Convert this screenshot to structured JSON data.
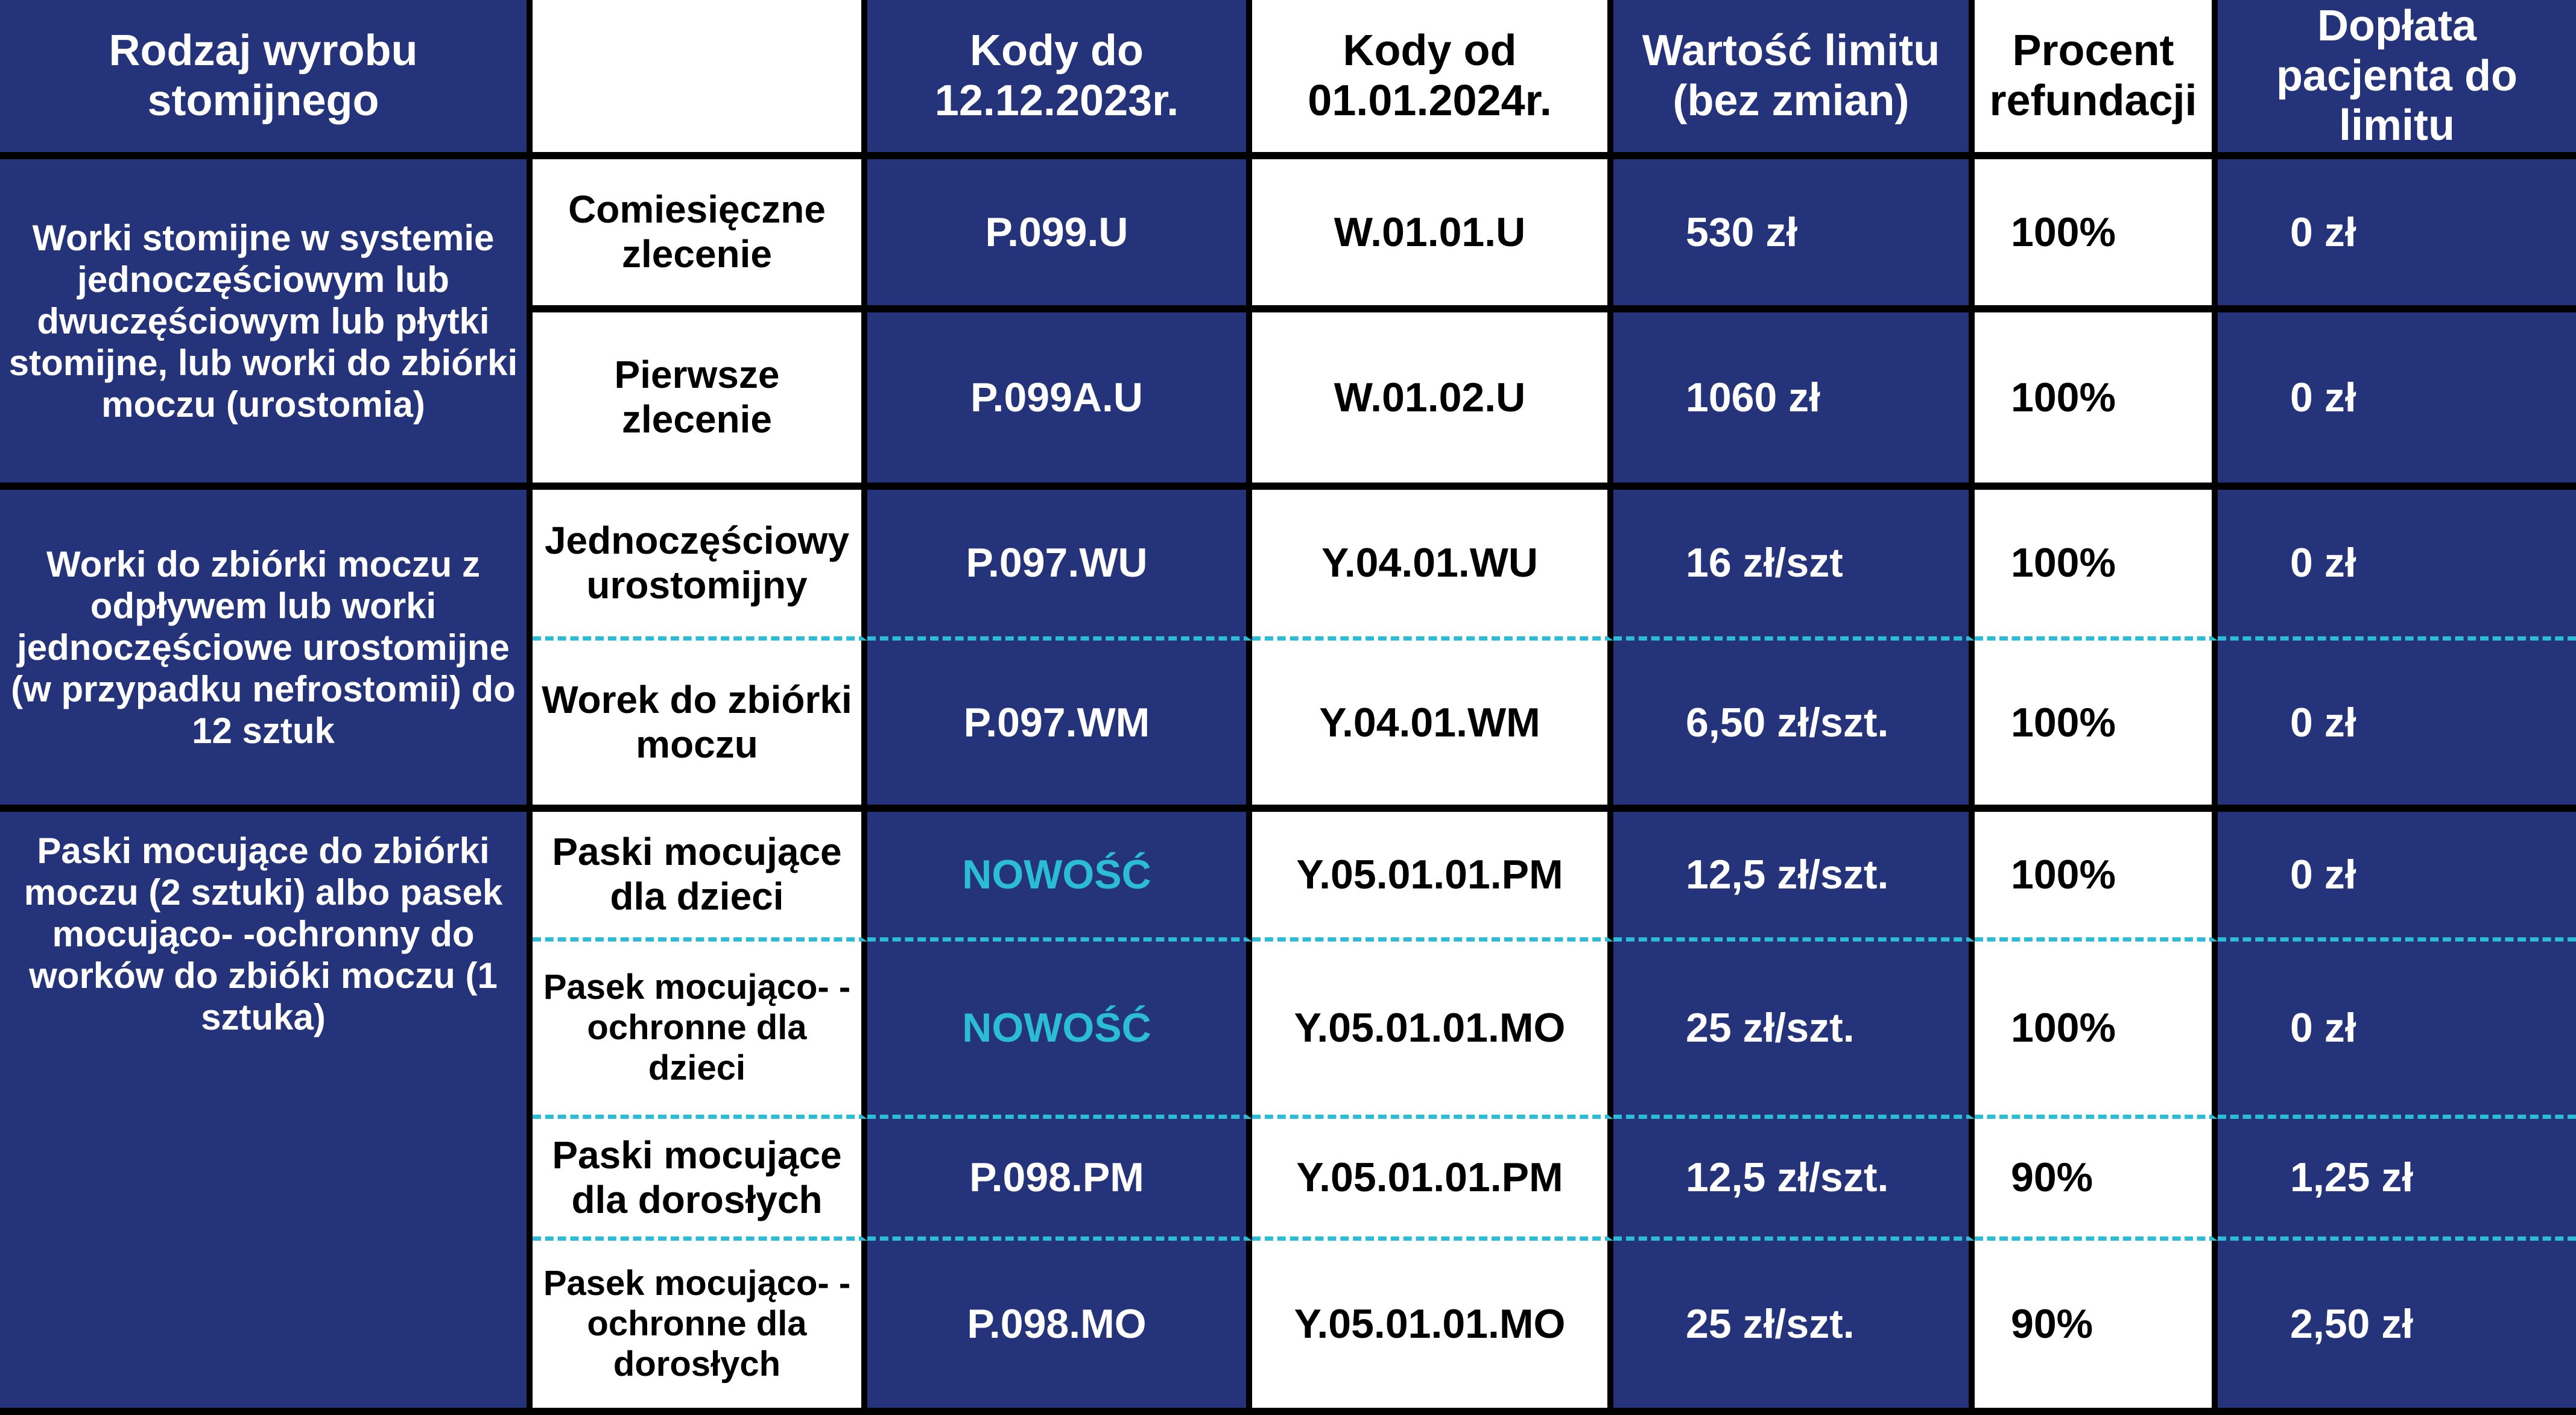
{
  "colors": {
    "blue": "#25347a",
    "white": "#ffffff",
    "new_badge": "#2bbcd8",
    "divider_dashed": "#2bbcd8"
  },
  "header": [
    "Rodzaj wyrobu stomijnego",
    "",
    "Kody do 12.12.2023r.",
    "Kody od 01.01.2024r.",
    "Wartość limitu (bez zmian)",
    "Procent refundacji",
    "Dopłata pacjenta do limitu"
  ],
  "groups": [
    {
      "category": "Worki stomijne w systemie jednoczęściowym lub dwuczęściowym lub płytki stomijne, lub worki do zbiórki moczu (urostomia)",
      "rows": [
        {
          "sub": "Comiesięczne zlecenie",
          "old": "P.099.U",
          "new": "W.01.01.U",
          "limit": "530 zł",
          "pct": "100%",
          "copay": "0 zł"
        },
        {
          "sub": "Pierwsze zlecenie",
          "old": "P.099A.U",
          "new": "W.01.02.U",
          "limit": "1060 zł",
          "pct": "100%",
          "copay": "0 zł"
        }
      ]
    },
    {
      "category": "Worki do zbiórki moczu z odpływem lub worki jednoczęściowe urostomijne (w przypadku nefrostomii) do 12 sztuk",
      "rows": [
        {
          "sub": "Jednoczęściowy urostomijny",
          "old": "P.097.WU",
          "new": "Y.04.01.WU",
          "limit": "16 zł/szt",
          "pct": "100%",
          "copay": "0 zł"
        },
        {
          "sub": "Worek do zbiórki moczu",
          "old": "P.097.WM",
          "new": "Y.04.01.WM",
          "limit": "6,50 zł/szt.",
          "pct": "100%",
          "copay": "0 zł"
        }
      ]
    },
    {
      "category": "Paski mocujące do zbiórki moczu (2 sztuki) albo pasek mocująco- -ochronny do worków do zbióki moczu (1 sztuka)",
      "rows": [
        {
          "sub": "Paski mocujące dla dzieci",
          "old": "NOWOŚĆ",
          "new": "Y.05.01.01.PM",
          "limit": "12,5 zł/szt.",
          "pct": "100%",
          "copay": "0 zł"
        },
        {
          "sub": "Pasek mocująco- -ochronne dla dzieci",
          "old": "NOWOŚĆ",
          "new": "Y.05.01.01.MO",
          "limit": "25 zł/szt.",
          "pct": "100%",
          "copay": "0 zł"
        },
        {
          "sub": "Paski mocujące dla dorosłych",
          "old": "P.098.PM",
          "new": "Y.05.01.01.PM",
          "limit": "12,5 zł/szt.",
          "pct": "90%",
          "copay": "1,25 zł"
        },
        {
          "sub": "Pasek mocująco- -ochronne dla dorosłych",
          "old": "P.098.MO",
          "new": "Y.05.01.01.MO",
          "limit": "25 zł/szt.",
          "pct": "90%",
          "copay": "2,50 zł"
        }
      ]
    }
  ]
}
